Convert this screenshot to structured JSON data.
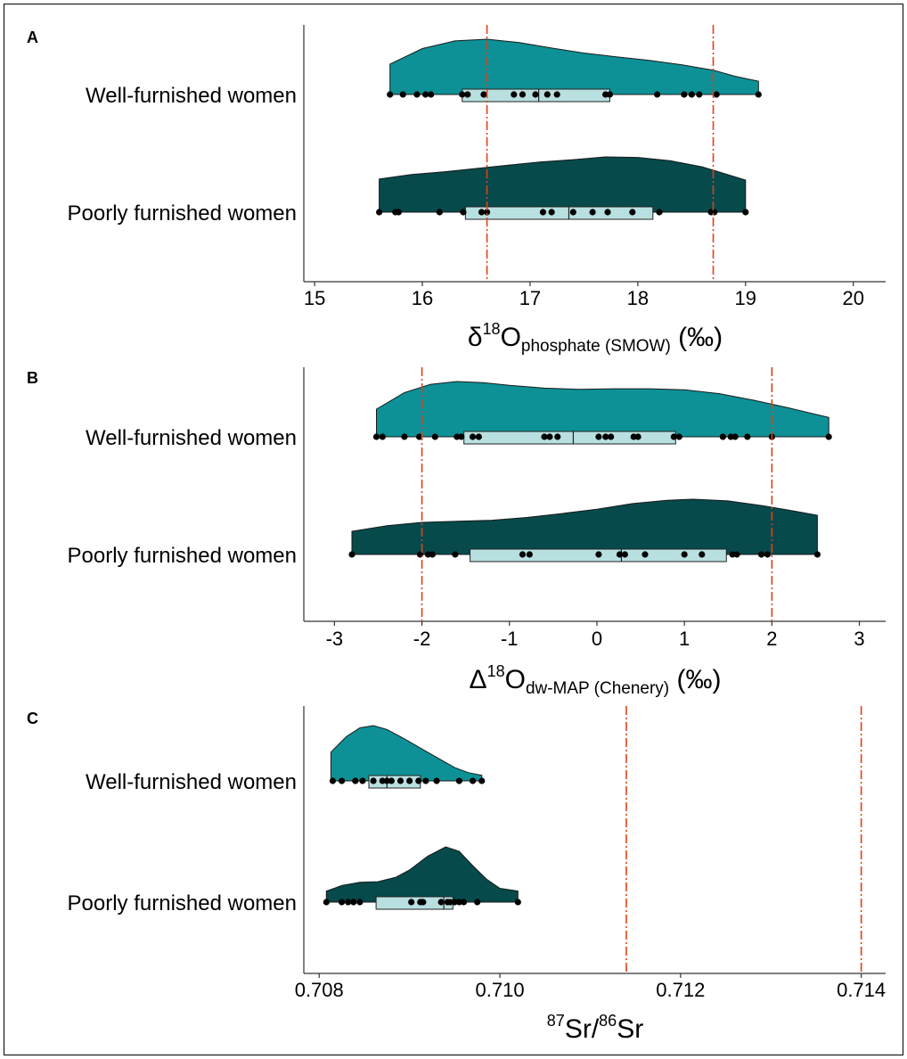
{
  "chart_data": [
    {
      "type": "raincloud",
      "panel_label": "A",
      "orientation": "horizontal",
      "categories": [
        "Well-furnished women",
        "Poorly furnished women"
      ],
      "xlim": [
        14.9,
        20.3
      ],
      "xticks": [
        15,
        16,
        17,
        18,
        19,
        20
      ],
      "tick_labels": [
        "15",
        "16",
        "17",
        "18",
        "19",
        "20"
      ],
      "xlabel": {
        "main": "δ",
        "sup": "18",
        "base": "O",
        "sub": "phosphate (SMOW)",
        "unit": "(‰)"
      },
      "reference_lines": [
        16.6,
        18.7
      ],
      "series": [
        {
          "name": "Well-furnished women",
          "color": "#0d9196",
          "points": [
            15.7,
            15.82,
            15.95,
            16.03,
            16.08,
            16.37,
            16.42,
            16.57,
            16.85,
            16.93,
            17.05,
            17.16,
            17.25,
            17.7,
            17.74,
            18.18,
            18.43,
            18.5,
            18.57,
            18.73,
            19.12
          ],
          "box": {
            "q1": 16.37,
            "median": 17.08,
            "q3": 17.74
          },
          "density": [
            [
              15.7,
              0.55
            ],
            [
              16.0,
              0.83
            ],
            [
              16.3,
              0.97
            ],
            [
              16.6,
              1.0
            ],
            [
              16.9,
              0.94
            ],
            [
              17.2,
              0.84
            ],
            [
              17.5,
              0.75
            ],
            [
              17.8,
              0.68
            ],
            [
              18.1,
              0.62
            ],
            [
              18.4,
              0.54
            ],
            [
              18.7,
              0.44
            ],
            [
              18.9,
              0.33
            ],
            [
              19.12,
              0.24
            ]
          ]
        },
        {
          "name": "Poorly furnished women",
          "color": "#064a4c",
          "points": [
            15.6,
            15.75,
            15.78,
            16.16,
            16.38,
            16.55,
            16.6,
            17.12,
            17.2,
            17.4,
            17.58,
            17.72,
            17.95,
            18.2,
            18.68,
            18.71,
            19.0
          ],
          "box": {
            "q1": 16.4,
            "median": 17.36,
            "q3": 18.14
          },
          "density": [
            [
              15.6,
              0.6
            ],
            [
              15.9,
              0.68
            ],
            [
              16.2,
              0.73
            ],
            [
              16.5,
              0.79
            ],
            [
              16.8,
              0.85
            ],
            [
              17.1,
              0.91
            ],
            [
              17.4,
              0.95
            ],
            [
              17.7,
              1.0
            ],
            [
              18.0,
              0.99
            ],
            [
              18.3,
              0.93
            ],
            [
              18.6,
              0.82
            ],
            [
              18.8,
              0.7
            ],
            [
              19.0,
              0.58
            ]
          ]
        }
      ]
    },
    {
      "type": "raincloud",
      "panel_label": "B",
      "orientation": "horizontal",
      "categories": [
        "Well-furnished women",
        "Poorly furnished women"
      ],
      "xlim": [
        -3.35,
        3.3
      ],
      "xticks": [
        -3,
        -2,
        -1,
        0,
        1,
        2,
        3
      ],
      "tick_labels": [
        "-3",
        "-2",
        "-1",
        "0",
        "1",
        "2",
        "3"
      ],
      "xlabel": {
        "main": "Δ",
        "sup": "18",
        "base": "O",
        "sub": "dw-MAP (Chenery)",
        "unit": "(‰)"
      },
      "reference_lines": [
        -2,
        2
      ],
      "series": [
        {
          "name": "Well-furnished women",
          "color": "#0d9196",
          "points": [
            -2.52,
            -2.45,
            -2.2,
            -2.03,
            -1.85,
            -1.6,
            -1.55,
            -1.42,
            -1.35,
            -0.6,
            -0.54,
            -0.45,
            0.02,
            0.1,
            0.16,
            0.42,
            0.47,
            0.88,
            0.94,
            1.44,
            1.53,
            1.58,
            1.72,
            2.0,
            2.65
          ],
          "box": {
            "q1": -1.52,
            "median": -0.27,
            "q3": 0.9
          },
          "density": [
            [
              -2.52,
              0.5
            ],
            [
              -2.2,
              0.8
            ],
            [
              -1.9,
              0.95
            ],
            [
              -1.6,
              1.0
            ],
            [
              -1.3,
              0.98
            ],
            [
              -1.0,
              0.93
            ],
            [
              -0.6,
              0.88
            ],
            [
              -0.2,
              0.86
            ],
            [
              0.2,
              0.87
            ],
            [
              0.6,
              0.87
            ],
            [
              1.0,
              0.85
            ],
            [
              1.4,
              0.78
            ],
            [
              1.8,
              0.66
            ],
            [
              2.2,
              0.52
            ],
            [
              2.65,
              0.35
            ]
          ]
        },
        {
          "name": "Poorly furnished women",
          "color": "#064a4c",
          "points": [
            -2.8,
            -2.02,
            -1.93,
            -1.88,
            -1.62,
            -0.85,
            -0.77,
            0.02,
            0.26,
            0.32,
            0.55,
            1.0,
            1.2,
            1.55,
            1.6,
            1.88,
            1.95,
            2.52
          ],
          "box": {
            "q1": -1.45,
            "median": 0.28,
            "q3": 1.48
          },
          "density": [
            [
              -2.8,
              0.42
            ],
            [
              -2.4,
              0.52
            ],
            [
              -2.0,
              0.58
            ],
            [
              -1.6,
              0.6
            ],
            [
              -1.2,
              0.62
            ],
            [
              -0.8,
              0.67
            ],
            [
              -0.4,
              0.74
            ],
            [
              0.0,
              0.82
            ],
            [
              0.4,
              0.92
            ],
            [
              0.8,
              0.98
            ],
            [
              1.1,
              1.0
            ],
            [
              1.5,
              0.97
            ],
            [
              1.9,
              0.88
            ],
            [
              2.2,
              0.8
            ],
            [
              2.52,
              0.71
            ]
          ]
        }
      ]
    },
    {
      "type": "raincloud",
      "panel_label": "C",
      "orientation": "horizontal",
      "categories": [
        "Well-furnished women",
        "Poorly furnished women"
      ],
      "xlim": [
        0.70783,
        0.71427
      ],
      "xticks": [
        0.708,
        0.71,
        0.712,
        0.714
      ],
      "tick_labels": [
        "0.708",
        "0.710",
        "0.712",
        "0.714"
      ],
      "xlabel": {
        "main": "",
        "sup": "87",
        "base": "Sr/",
        "sup2": "86",
        "base2": "Sr"
      },
      "reference_lines": [
        0.7114,
        0.714
      ],
      "series": [
        {
          "name": "Well-furnished women",
          "color": "#0d9196",
          "points": [
            0.70815,
            0.70825,
            0.7084,
            0.70848,
            0.7086,
            0.7087,
            0.70875,
            0.7088,
            0.7089,
            0.709,
            0.7091,
            0.70918,
            0.7093,
            0.70955,
            0.7097,
            0.7098
          ],
          "box": {
            "q1": 0.70855,
            "median": 0.70875,
            "q3": 0.70912
          },
          "density": [
            [
              0.70813,
              0.52
            ],
            [
              0.7083,
              0.8
            ],
            [
              0.70845,
              0.96
            ],
            [
              0.7086,
              1.0
            ],
            [
              0.70875,
              0.93
            ],
            [
              0.7089,
              0.8
            ],
            [
              0.70905,
              0.66
            ],
            [
              0.7092,
              0.52
            ],
            [
              0.70935,
              0.38
            ],
            [
              0.7095,
              0.24
            ],
            [
              0.70965,
              0.15
            ],
            [
              0.7098,
              0.1
            ]
          ]
        },
        {
          "name": "Poorly furnished women",
          "color": "#064a4c",
          "points": [
            0.70808,
            0.70825,
            0.70832,
            0.70838,
            0.70845,
            0.70902,
            0.70912,
            0.70915,
            0.70935,
            0.70942,
            0.70945,
            0.7095,
            0.70955,
            0.7096,
            0.70975,
            0.7102
          ],
          "box": {
            "q1": 0.70863,
            "median": 0.70938,
            "q3": 0.70948
          },
          "density": [
            [
              0.70808,
              0.2
            ],
            [
              0.70825,
              0.3
            ],
            [
              0.70845,
              0.36
            ],
            [
              0.70865,
              0.37
            ],
            [
              0.70885,
              0.45
            ],
            [
              0.709,
              0.58
            ],
            [
              0.7092,
              0.83
            ],
            [
              0.7094,
              1.0
            ],
            [
              0.70955,
              0.92
            ],
            [
              0.7097,
              0.66
            ],
            [
              0.70985,
              0.42
            ],
            [
              0.71,
              0.25
            ],
            [
              0.7102,
              0.2
            ]
          ]
        }
      ]
    }
  ]
}
